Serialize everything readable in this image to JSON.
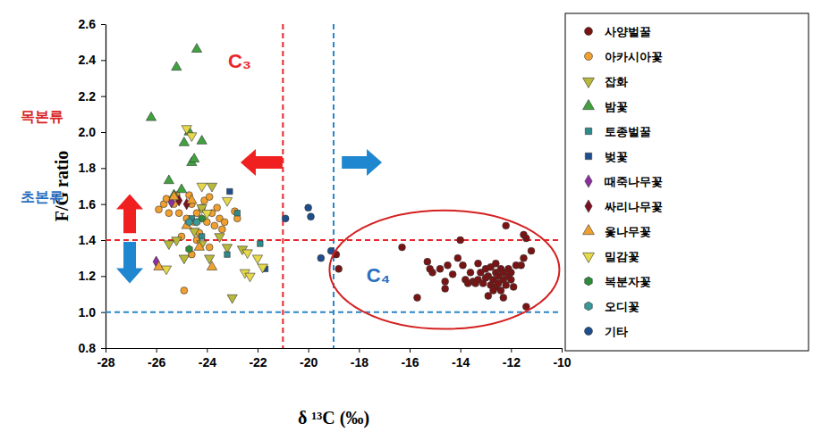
{
  "chart_data": {
    "type": "scatter",
    "x_label": "δ ¹³C (‰)",
    "y_label": "F/G ratio",
    "xlim": [
      -28,
      -10
    ],
    "xticks": [
      -28,
      -26,
      -24,
      -22,
      -20,
      -18,
      -16,
      -14,
      -12,
      -10
    ],
    "ylim": [
      0.8,
      2.6
    ],
    "yticks": [
      0.8,
      {
        "value": 1,
        "label": "1.0"
      },
      1.2,
      1.4,
      1.6,
      1.8,
      {
        "value": 2,
        "label": "2.0"
      },
      2.2,
      2.4,
      2.6
    ],
    "grid": false,
    "legend": "right",
    "annotations": [
      {
        "text": "C₃",
        "color": "#e8262b"
      },
      {
        "text": "C₄",
        "color": "#2a6fc0"
      },
      {
        "text": "목본류",
        "color": "#d92020"
      },
      {
        "text": "초본류",
        "color": "#2a6fc0"
      }
    ],
    "reference_lines": [
      {
        "axis": "x",
        "value": -21,
        "color": "#e8262b",
        "line_style": "dashed"
      },
      {
        "axis": "x",
        "value": -19,
        "color": "#2a86c8",
        "line_style": "dashed"
      },
      {
        "axis": "y",
        "value": 1.4,
        "color": "#e8262b",
        "line_style": "dashed"
      },
      {
        "axis": "y",
        "value": 1,
        "color": "#2a86c8",
        "line_style": "dashed"
      }
    ],
    "series": [
      {
        "name": "사양벌꿀",
        "color": "#7a1414",
        "marker": "circle",
        "x": [
          -16.3,
          -15.7,
          -15.3,
          -15.1,
          -15.2,
          -14.8,
          -14.6,
          -14.5,
          -14.3,
          -14.1,
          -14.0,
          -13.9,
          -13.8,
          -13.6,
          -13.5,
          -13.4,
          -13.3,
          -13.2,
          -13.1,
          -13.0,
          -12.9,
          -12.8,
          -12.8,
          -12.7,
          -12.6,
          -12.6,
          -12.5,
          -12.5,
          -12.4,
          -12.4,
          -12.3,
          -12.3,
          -12.2,
          -12.2,
          -12.1,
          -12.1,
          -12.0,
          -12.0,
          -11.9,
          -12.7,
          -13.0,
          -11.5,
          -11.4,
          -11.2,
          -11.5,
          -11.6,
          -11.4,
          -12.3,
          -13.7,
          -14.6,
          -12.9,
          -18.9,
          -18.8,
          -11.8,
          -13.3,
          -12.6
        ],
        "values": [
          1.36,
          1.08,
          1.28,
          1.22,
          1.24,
          1.24,
          1.17,
          1.26,
          1.21,
          1.3,
          1.4,
          1.26,
          1.18,
          1.22,
          1.17,
          1.16,
          1.18,
          1.22,
          1.16,
          1.24,
          1.2,
          1.25,
          1.15,
          1.18,
          1.22,
          1.14,
          1.2,
          1.16,
          1.24,
          1.12,
          1.18,
          1.22,
          1.15,
          1.48,
          1.2,
          1.24,
          1.18,
          1.22,
          1.14,
          1.12,
          1.19,
          1.43,
          1.41,
          1.34,
          1.3,
          1.26,
          1.03,
          1.08,
          1.16,
          1.13,
          1.09,
          1.32,
          1.24,
          1.26,
          1.27,
          1.27
        ]
      },
      {
        "name": "아카시아꽃",
        "color": "#f0a030",
        "marker": "circle",
        "x": [
          -25.9,
          -25.7,
          -25.6,
          -25.5,
          -25.3,
          -25.1,
          -25.0,
          -24.9,
          -24.8,
          -24.7,
          -24.6,
          -24.5,
          -24.4,
          -24.3,
          -24.2,
          -24.1,
          -24.0,
          -23.9,
          -23.8,
          -23.7,
          -23.6,
          -23.5,
          -23.4,
          -23.3,
          -22.9,
          -22.8,
          -25.2,
          -24.4,
          -23.9,
          -24.6
        ],
        "values": [
          1.57,
          1.6,
          1.63,
          1.55,
          1.6,
          1.55,
          1.42,
          1.12,
          1.52,
          1.65,
          1.6,
          1.5,
          1.55,
          1.44,
          1.58,
          1.62,
          1.5,
          1.64,
          1.55,
          1.48,
          1.58,
          1.52,
          1.46,
          1.5,
          1.56,
          1.52,
          1.65,
          1.4,
          1.36,
          1.32
        ]
      },
      {
        "name": "잡화",
        "color": "#b8b83a",
        "marker": "triangle-down",
        "x": [
          -25.2,
          -24.9,
          -24.5,
          -24.2,
          -23.9,
          -23.5,
          -23.2,
          -22.6,
          -25.5,
          -23.0,
          -24.2,
          -23.8
        ],
        "values": [
          1.4,
          1.3,
          1.45,
          1.38,
          1.3,
          1.42,
          1.36,
          1.35,
          1.38,
          1.08,
          1.58,
          1.7
        ]
      },
      {
        "name": "밤꽃",
        "color": "#3fa23f",
        "marker": "triangle-up",
        "x": [
          -26.2,
          -25.2,
          -24.4,
          -24.9,
          -24.7,
          -24.2,
          -25.5,
          -24.6,
          -25.0,
          -25.3,
          -24.5
        ],
        "values": [
          2.08,
          2.36,
          2.46,
          1.94,
          2.0,
          1.95,
          1.73,
          1.83,
          1.68,
          1.65,
          1.85
        ]
      },
      {
        "name": "토종벌꿀",
        "color": "#2e8b8b",
        "marker": "square",
        "x": [
          -24.6,
          -22.8,
          -21.9,
          -24.2,
          -23.2
        ],
        "values": [
          1.52,
          1.55,
          1.38,
          1.42,
          1.32
        ]
      },
      {
        "name": "벚꽃",
        "color": "#1f4e8c",
        "marker": "square",
        "x": [
          -23.1,
          -21.7
        ],
        "values": [
          1.67,
          1.24
        ]
      },
      {
        "name": "때죽나무꽃",
        "color": "#8b2fa0",
        "marker": "diamond",
        "x": [
          -26.0,
          -25.4
        ],
        "values": [
          1.28,
          1.61
        ]
      },
      {
        "name": "싸리나무꽃",
        "color": "#7a1020",
        "marker": "diamond",
        "x": [
          -25.1,
          -24.8
        ],
        "values": [
          1.62,
          1.6
        ]
      },
      {
        "name": "옻나무꽃",
        "color": "#f0a030",
        "marker": "triangle-up",
        "x": [
          -25.9,
          -24.8,
          -24.3,
          -23.8,
          -24.6,
          -25.3
        ],
        "values": [
          1.25,
          1.48,
          1.36,
          1.25,
          1.62,
          1.64
        ]
      },
      {
        "name": "밀감꽃",
        "color": "#e6d84a",
        "marker": "triangle-down",
        "x": [
          -24.8,
          -24.6,
          -24.2,
          -23.2,
          -22.5,
          -22.0,
          -21.8,
          -22.4,
          -25.6,
          -24.0,
          -22.3
        ],
        "values": [
          2.02,
          1.98,
          1.7,
          1.62,
          1.22,
          1.3,
          1.25,
          1.33,
          1.24,
          1.55,
          1.2
        ]
      },
      {
        "name": "복분자꽃",
        "color": "#2e8b3a",
        "marker": "hexagon",
        "x": [
          -24.7,
          -24.2
        ],
        "values": [
          1.35,
          1.52
        ]
      },
      {
        "name": "오디꽃",
        "color": "#3a9a9a",
        "marker": "hexagon",
        "x": [
          -24.7,
          -24.4
        ],
        "values": [
          1.5,
          1.5
        ]
      },
      {
        "name": "기타",
        "color": "#1f4e8c",
        "marker": "circle",
        "x": [
          -20.9,
          -20.0,
          -19.9,
          -19.1,
          -19.5
        ],
        "values": [
          1.52,
          1.58,
          1.53,
          1.34,
          1.3
        ]
      }
    ]
  }
}
